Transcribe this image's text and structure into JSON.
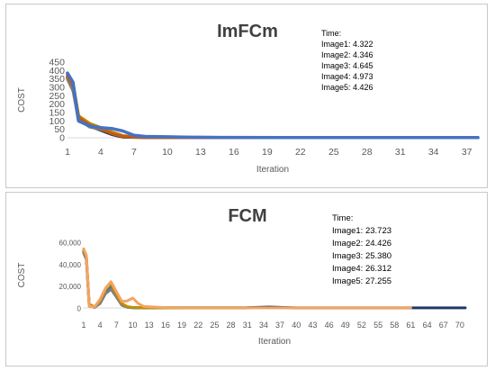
{
  "chart_data": [
    {
      "type": "line",
      "title": "ImFCm",
      "xlabel": "Iteration",
      "ylabel": "COST",
      "ylim": [
        0,
        450
      ],
      "yticks": [
        "0",
        "50",
        "100",
        "150",
        "200",
        "250",
        "300",
        "350",
        "400",
        "450"
      ],
      "xticks": [
        "1",
        "4",
        "7",
        "10",
        "13",
        "16",
        "19",
        "22",
        "25",
        "28",
        "31",
        "34",
        "37"
      ],
      "xlim": [
        1,
        38
      ],
      "annotation": [
        "Time:",
        "Image1: 4.322",
        "Image2: 4.346",
        "Image3: 4.645",
        "Image4: 4.973",
        "Image5: 4.426"
      ],
      "colors": [
        "#1f3864",
        "#7f7f7f",
        "#bf8f00",
        "#c55a11",
        "#4472c4"
      ],
      "series": [
        {
          "x": [
            1,
            1.5,
            2,
            3,
            4,
            5,
            6,
            7,
            8,
            10,
            15,
            20,
            25,
            30,
            35,
            38
          ],
          "values": [
            360,
            300,
            100,
            70,
            45,
            20,
            5,
            3,
            2,
            1,
            1,
            1,
            1,
            1,
            1,
            1
          ]
        },
        {
          "x": [
            1,
            1.5,
            2,
            3,
            4,
            5,
            6,
            7,
            8,
            10,
            15,
            20,
            25,
            30
          ],
          "values": [
            350,
            280,
            110,
            65,
            50,
            30,
            10,
            5,
            3,
            2,
            1,
            1,
            1,
            1
          ]
        },
        {
          "x": [
            1,
            1.5,
            2,
            3,
            4,
            5,
            6,
            7,
            8,
            10,
            15,
            20,
            25,
            30
          ],
          "values": [
            380,
            320,
            130,
            85,
            60,
            35,
            12,
            6,
            4,
            2,
            1,
            1,
            1,
            1
          ]
        },
        {
          "x": [
            1,
            1.5,
            2,
            3,
            4,
            5,
            6,
            7,
            8,
            10,
            15,
            20,
            25,
            30
          ],
          "values": [
            370,
            310,
            120,
            75,
            55,
            25,
            8,
            4,
            3,
            2,
            1,
            1,
            1,
            1
          ]
        },
        {
          "x": [
            1,
            1.5,
            2,
            3,
            4,
            5,
            6,
            7,
            8,
            10,
            12,
            15,
            20,
            25,
            30,
            35,
            38
          ],
          "values": [
            385,
            330,
            100,
            70,
            60,
            55,
            40,
            15,
            8,
            6,
            3,
            2,
            1,
            1,
            1,
            1,
            1
          ]
        }
      ]
    },
    {
      "type": "line",
      "title": "FCM",
      "xlabel": "Iteration",
      "ylabel": "COST",
      "ylim": [
        0,
        60000
      ],
      "yticks": [
        "0",
        "20,000",
        "40,000",
        "60,000"
      ],
      "xticks": [
        "1",
        "4",
        "7",
        "10",
        "13",
        "16",
        "19",
        "22",
        "25",
        "28",
        "31",
        "34",
        "37",
        "40",
        "43",
        "46",
        "49",
        "52",
        "55",
        "58",
        "61",
        "64",
        "67",
        "70"
      ],
      "xlim": [
        1,
        71
      ],
      "annotation": [
        "Time:",
        "Image1:  23.723",
        "Image2: 24.426",
        "Image3: 25.380",
        "Image4: 26.312",
        "Image5: 27.255"
      ],
      "colors": [
        "#1f3864",
        "#2e75b6",
        "#7f7f7f",
        "#bf8f00",
        "#f4a460"
      ],
      "series": [
        {
          "x": [
            1,
            1.5,
            2,
            3,
            4,
            5,
            6,
            7,
            8,
            9,
            10,
            11,
            12,
            14,
            20,
            30,
            35,
            40,
            50,
            60,
            65,
            71
          ],
          "values": [
            51000,
            45000,
            3000,
            500,
            5000,
            15000,
            19000,
            14000,
            4000,
            1000,
            300,
            200,
            150,
            100,
            50,
            50,
            800,
            50,
            50,
            50,
            50,
            50
          ]
        },
        {
          "x": [
            1,
            1.5,
            2,
            3,
            4,
            5,
            6,
            7,
            8,
            9,
            10,
            12,
            15,
            20,
            30
          ],
          "values": [
            52000,
            46000,
            2000,
            800,
            6000,
            16000,
            20000,
            12000,
            3000,
            800,
            200,
            100,
            50,
            50,
            50
          ]
        },
        {
          "x": [
            1,
            1.5,
            2,
            3,
            4,
            5,
            6,
            7,
            8,
            9,
            10,
            12,
            15,
            20,
            30
          ],
          "values": [
            50000,
            44000,
            2500,
            600,
            4000,
            13000,
            17000,
            10000,
            2500,
            600,
            200,
            100,
            50,
            50,
            50
          ]
        },
        {
          "x": [
            1,
            1.5,
            2,
            3,
            4,
            5,
            6,
            7,
            8,
            9,
            10,
            12,
            15,
            20,
            30
          ],
          "values": [
            53000,
            47000,
            3500,
            1000,
            7000,
            17000,
            22000,
            13000,
            4000,
            1200,
            400,
            150,
            50,
            50,
            50
          ]
        },
        {
          "x": [
            1,
            1.5,
            2,
            3,
            4,
            5,
            6,
            7,
            8,
            9,
            10,
            11,
            12,
            14,
            16,
            20,
            30,
            40,
            50,
            61
          ],
          "values": [
            54000,
            48000,
            1500,
            1000,
            8000,
            18000,
            24000,
            15000,
            6000,
            6500,
            9000,
            4000,
            1500,
            800,
            300,
            100,
            50,
            50,
            50,
            50
          ]
        }
      ]
    }
  ]
}
